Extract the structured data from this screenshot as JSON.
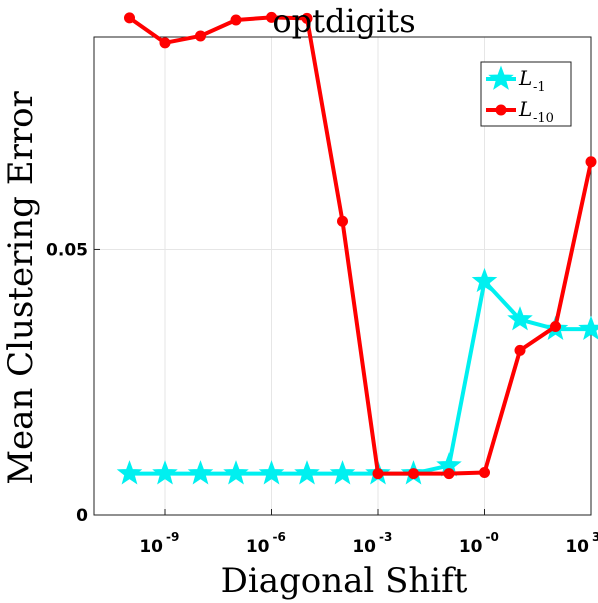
{
  "chart_data": {
    "type": "line",
    "title": "optdigits",
    "xlabel": "Diagonal Shift",
    "ylabel": "Mean Clustering Error",
    "xscale": "log",
    "xlim": [
      1e-11,
      1000
    ],
    "ylim": [
      0,
      0.09
    ],
    "x_ticks": [
      {
        "base": "10",
        "exp": "-9",
        "value": 1e-09
      },
      {
        "base": "10",
        "exp": "-6",
        "value": 1e-06
      },
      {
        "base": "10",
        "exp": "-3",
        "value": 0.001
      },
      {
        "base": "10",
        "exp": "-0",
        "value": 1
      },
      {
        "base": "10",
        "exp": "3",
        "value": 1000
      }
    ],
    "y_ticks": [
      {
        "label": "0",
        "value": 0
      },
      {
        "label": "0.05",
        "value": 0.05
      }
    ],
    "grid": true,
    "legend_position": "top-right",
    "x": [
      1e-10,
      1e-09,
      1e-08,
      1e-07,
      1e-06,
      1e-05,
      0.0001,
      0.001,
      0.01,
      0.1,
      1,
      10,
      100,
      1000
    ],
    "series": [
      {
        "name_base": "L",
        "name_sub": "-1",
        "color": "#00f0f0",
        "marker": "star",
        "values": [
          0.0078,
          0.0078,
          0.0078,
          0.0078,
          0.0078,
          0.0078,
          0.0078,
          0.0078,
          0.0078,
          0.0093,
          0.044,
          0.0368,
          0.035,
          0.035
        ]
      },
      {
        "name_base": "L",
        "name_sub": "-10",
        "color": "#ff0000",
        "marker": "circle",
        "values": [
          0.0936,
          0.0889,
          0.0902,
          0.0932,
          0.0937,
          0.0935,
          0.0553,
          0.0078,
          0.0078,
          0.0078,
          0.008,
          0.031,
          0.0355,
          0.0665
        ]
      }
    ]
  }
}
